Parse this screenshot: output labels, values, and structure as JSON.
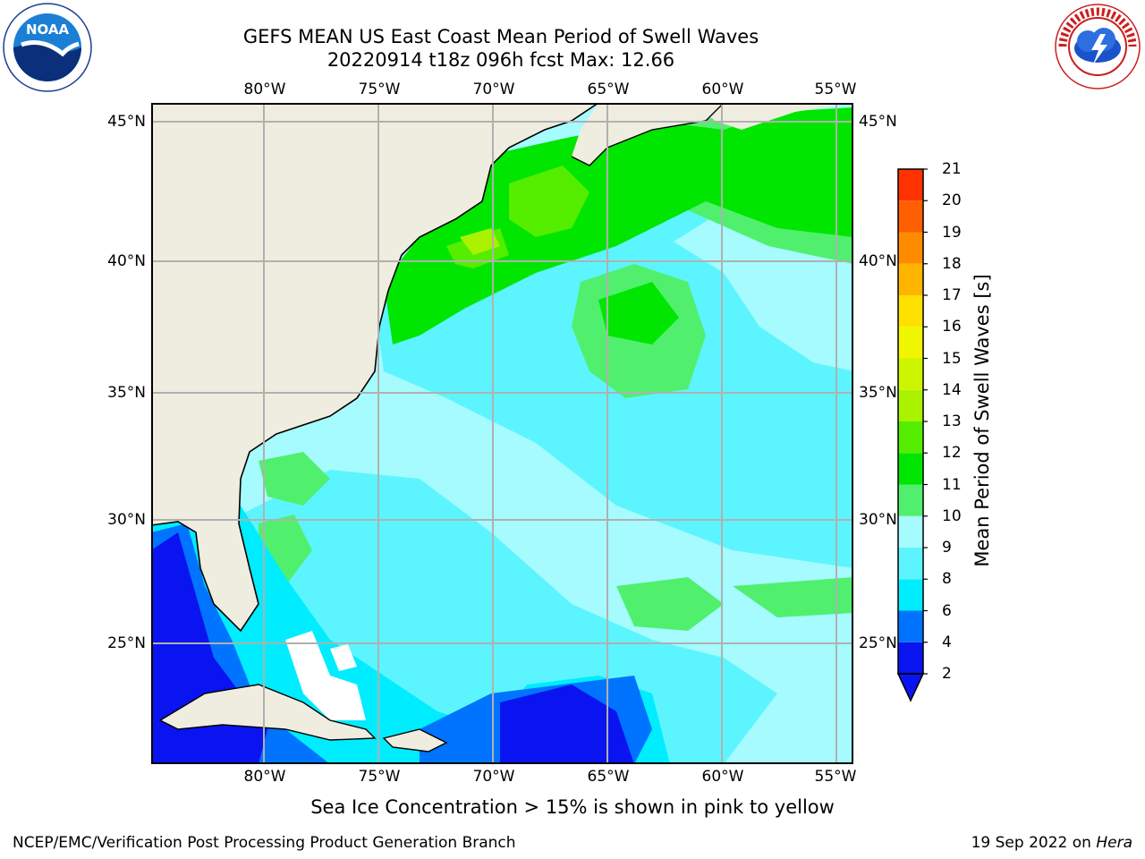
{
  "header": {
    "title": "GEFS MEAN US East Coast Mean Period of Swell Waves",
    "subtitle": "20220914 t18z 096h fcst   Max: 12.66"
  },
  "logos": {
    "left": "noaa-logo",
    "right": "nws-logo"
  },
  "map": {
    "extent": {
      "lon": [
        -85,
        -54.3
      ],
      "lat": [
        20.5,
        46
      ]
    },
    "lon_ticks": [
      "80°W",
      "75°W",
      "70°W",
      "65°W",
      "60°W",
      "55°W"
    ],
    "lat_ticks": [
      "45°N",
      "40°N",
      "35°N",
      "30°N",
      "25°N"
    ],
    "gridlines": true,
    "land_color": "#efede0",
    "missing_color": "#ffffff"
  },
  "colorbar": {
    "label": "Mean Period of Swell Waves [s]",
    "ticks": [
      "2",
      "4",
      "6",
      "8",
      "9",
      "10",
      "11",
      "12",
      "13",
      "14",
      "15",
      "16",
      "17",
      "18",
      "19",
      "20",
      "21"
    ],
    "colors": [
      "#0a14f0",
      "#0074ff",
      "#00ecff",
      "#5cf5ff",
      "#a6fbff",
      "#50f06e",
      "#00e600",
      "#55ed00",
      "#aaf200",
      "#cdf500",
      "#f0f500",
      "#ffe100",
      "#ffb400",
      "#ff8c00",
      "#ff5f00",
      "#ff3200",
      "#ff0000"
    ],
    "under_color": "#0a14f0"
  },
  "caption": "Sea Ice Concentration > 15% is shown in pink to yellow",
  "footer": {
    "left": "NCEP/EMC/Verification Post Processing Product Generation Branch",
    "right_date": "19 Sep 2022 on ",
    "right_host": "Hera"
  }
}
